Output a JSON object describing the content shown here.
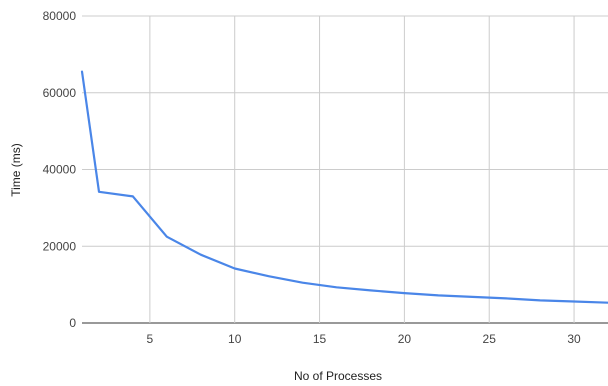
{
  "chart_data": {
    "type": "line",
    "title": "",
    "xlabel": "No of Processes",
    "ylabel": "Time (ms)",
    "xlim": [
      1,
      32
    ],
    "ylim": [
      0,
      80000
    ],
    "x_ticks": [
      5,
      10,
      15,
      20,
      25,
      30
    ],
    "y_ticks": [
      0,
      20000,
      40000,
      60000,
      80000
    ],
    "grid": true,
    "line_color": "#4a86e8",
    "grid_color": "#cccccc",
    "series": [
      {
        "x": [
          1,
          2,
          4,
          6,
          8,
          10,
          12,
          14,
          16,
          18,
          20,
          22,
          24,
          26,
          28,
          30,
          32
        ],
        "values": [
          65500,
          34200,
          33000,
          22500,
          17800,
          14200,
          12200,
          10500,
          9300,
          8500,
          7800,
          7200,
          6800,
          6400,
          5900,
          5600,
          5300
        ]
      }
    ]
  }
}
